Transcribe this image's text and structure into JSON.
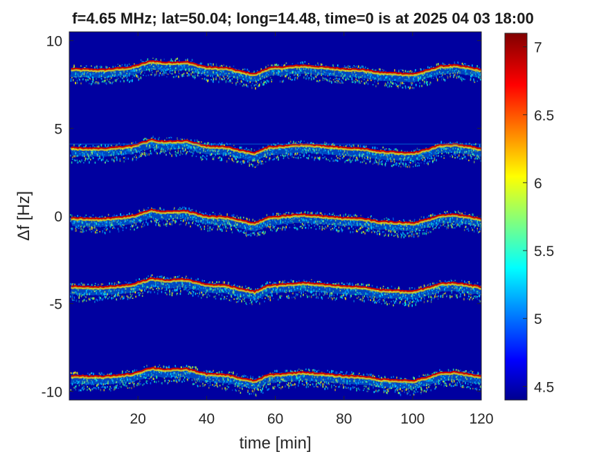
{
  "chart_data": {
    "type": "heatmap",
    "title": "f=4.65 MHz;  lat=50.04; long=14.48, time=0 is at 2025 04 03 18:00",
    "xlabel": "time [min]",
    "ylabel": "Δf [Hz]",
    "xlim": [
      0,
      120
    ],
    "ylim": [
      -10.5,
      10.5
    ],
    "xticks": [
      20,
      40,
      60,
      80,
      100,
      120
    ],
    "xtick_labels": [
      "20",
      "40",
      "60",
      "80",
      "100",
      "120"
    ],
    "yticks": [
      10,
      5,
      0,
      -5,
      -10
    ],
    "ytick_labels": [
      "10",
      "5",
      "0",
      "-5",
      "-10"
    ],
    "colorbar": {
      "colormap": "jet",
      "clim": [
        4.4,
        7.1
      ],
      "ticks": [
        7,
        6.5,
        6,
        5.5,
        5,
        4.5
      ],
      "tick_labels": [
        "7",
        "6.5",
        "6",
        "5.5",
        "5",
        "4.5"
      ]
    },
    "background_color": "#0000a0",
    "bands": [
      {
        "center_hz": 8.4,
        "description": "Doppler trace"
      },
      {
        "center_hz": 3.9,
        "description": "Doppler trace"
      },
      {
        "center_hz": -0.1,
        "description": "Doppler trace"
      },
      {
        "center_hz": -4.0,
        "description": "Doppler trace"
      },
      {
        "center_hz": -9.1,
        "description": "Doppler trace"
      }
    ],
    "trace_profile": {
      "time_min": [
        0,
        10,
        18,
        24,
        28,
        34,
        40,
        46,
        50,
        54,
        58,
        62,
        68,
        74,
        80,
        86,
        90,
        96,
        100,
        104,
        108,
        112,
        116,
        120
      ],
      "offset_hz": [
        0.0,
        -0.05,
        0.1,
        0.45,
        0.35,
        0.4,
        0.1,
        0.05,
        -0.15,
        -0.3,
        0.05,
        0.1,
        0.2,
        0.1,
        0.0,
        -0.05,
        -0.2,
        -0.25,
        -0.3,
        -0.1,
        0.15,
        0.2,
        0.1,
        -0.05
      ]
    }
  }
}
